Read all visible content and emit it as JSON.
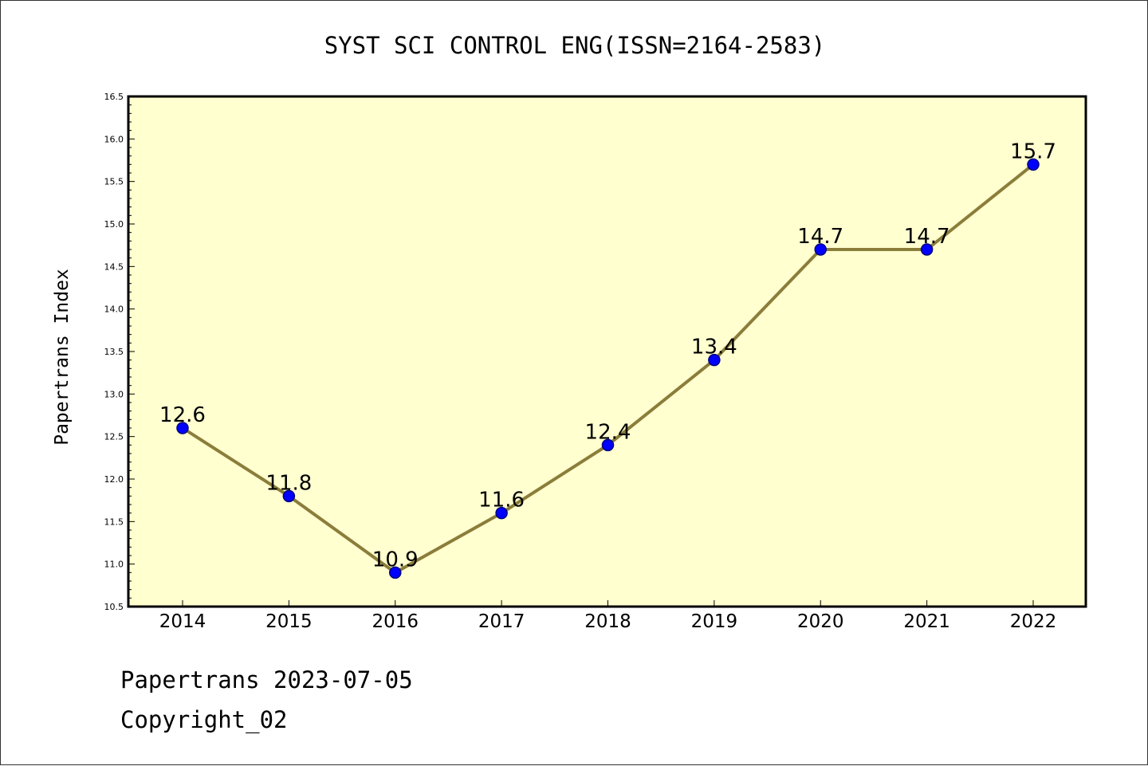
{
  "chart_data": {
    "type": "line",
    "title": "SYST SCI CONTROL ENG(ISSN=2164-2583)",
    "xlabel": "",
    "ylabel": "Papertrans Index",
    "categories": [
      "2014",
      "2015",
      "2016",
      "2017",
      "2018",
      "2019",
      "2020",
      "2021",
      "2022"
    ],
    "values": [
      12.6,
      11.8,
      10.9,
      11.6,
      12.4,
      13.4,
      14.7,
      14.7,
      15.7
    ],
    "data_labels": [
      "12.6",
      "11.8",
      "10.9",
      "11.6",
      "12.4",
      "13.4",
      "14.7",
      "14.7",
      "15.7"
    ],
    "ylim": [
      10.5,
      16.5
    ],
    "yticks": [
      "10.5",
      "11.0",
      "11.5",
      "12.0",
      "12.5",
      "13.0",
      "13.5",
      "14.0",
      "14.5",
      "15.0",
      "15.5",
      "16.0",
      "16.5"
    ],
    "grid": false,
    "legend": "none",
    "colors": {
      "plot_background": "#ffffd0",
      "line": "#8b7d3a",
      "marker_fill": "#0000ff",
      "marker_edge": "#000080",
      "axes": "#000000"
    }
  },
  "footer": {
    "line1": "Papertrans 2023-07-05",
    "line2": "Copyright_02"
  }
}
